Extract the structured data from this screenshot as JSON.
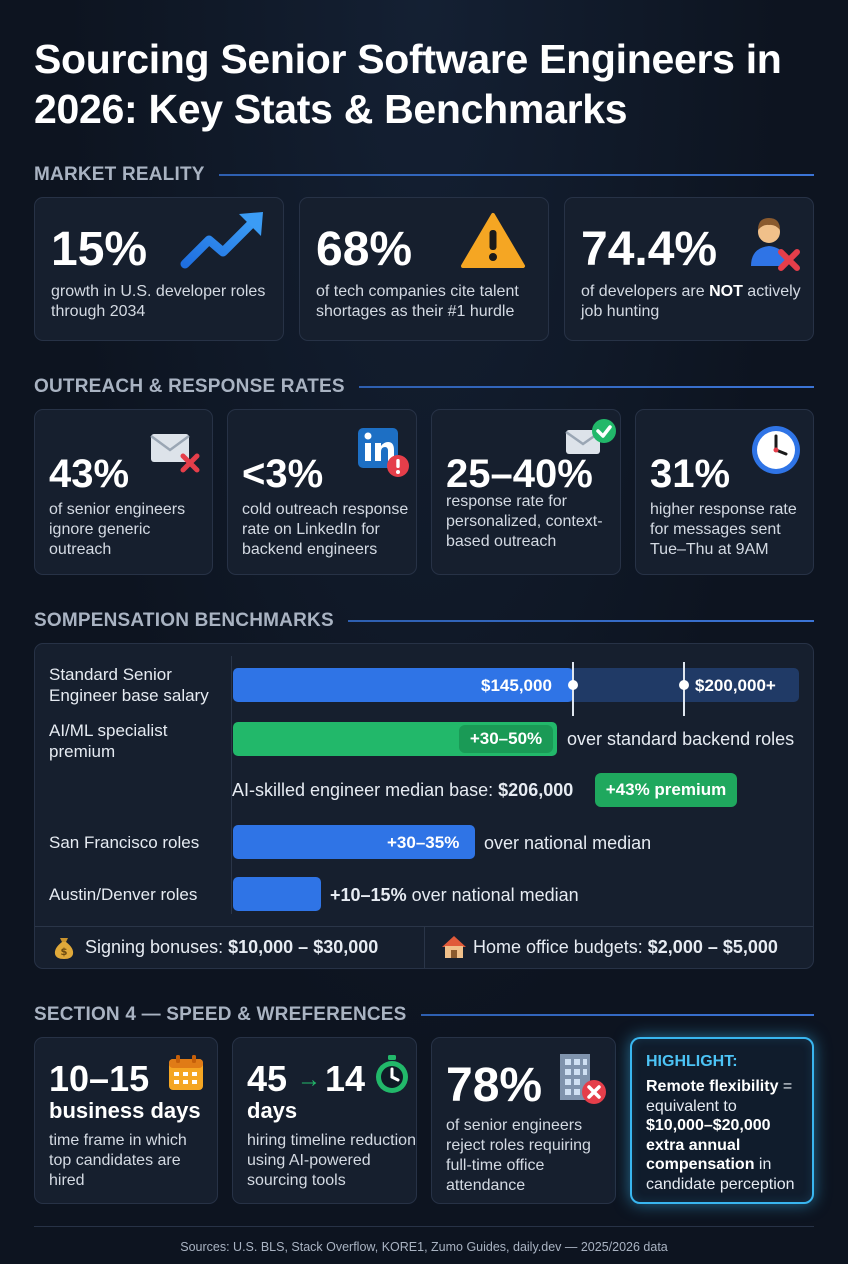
{
  "title": "Sourcing Senior Software Engineers in 2026: Key Stats & Benchmarks",
  "sections": {
    "market": "MARKET REALITY",
    "outreach": "OUTREACH & RESPONSE RATES",
    "comp": "SOMPENSATION BENCHMARKS",
    "speed": "SECTION 4 — SPEED & WREFERENCES"
  },
  "market_cards": [
    {
      "value": "15%",
      "text": "growth in U.S. developer roles through 2034",
      "icon": "trend-up-icon"
    },
    {
      "value": "68%",
      "text": "of tech companies cite talent shortages as their #1 hurdle",
      "icon": "warning-icon"
    },
    {
      "value": "74.4%",
      "text_a": "of developers are ",
      "text_b": "NOT",
      "text_c": " actively job hunting",
      "icon": "person-x-icon"
    }
  ],
  "outreach_cards": [
    {
      "value": "43%",
      "text": "of senior engineers ignore generic outreach",
      "icon": "mail-x-icon"
    },
    {
      "value": "<3%",
      "text": "cold outreach response rate on LinkedIn for backend engineers",
      "icon": "linkedin-alert-icon"
    },
    {
      "value": "25–40%",
      "text": "response rate for personalized, context-based outreach",
      "icon": "mail-check-icon"
    },
    {
      "value": "31%",
      "text": "higher response rate for messages sent Tue–Thu at 9AM",
      "icon": "clock-icon"
    }
  ],
  "comp": {
    "senior_label": "Standard Senior Engineer base salary",
    "senior_low": "$145,000",
    "senior_high": "$200,000+",
    "aiml_label": "AI/ML specialist premium",
    "aiml_pill": "+30–50%",
    "aiml_after": "over standard backend roles",
    "ai_median_text": "AI-skilled engineer median base: ",
    "ai_median_value": "$206,000",
    "ai_median_pill": "+43% premium",
    "sf_label": "San Francisco roles",
    "sf_bar": "+30–35%",
    "sf_after": "over national median",
    "austin_label": "Austin/Denver roles",
    "austin_value": "+10–15%",
    "austin_after": " over national median",
    "signing_text": "Signing bonuses: ",
    "signing_value": "$10,000 – $30,000",
    "home_text": "Home office budgets: ",
    "home_value": "$2,000 – $5,000",
    "colors": {
      "blue": "#2f74e6",
      "track": "#203a66",
      "green": "#22b86a"
    }
  },
  "speed_cards": [
    {
      "value": "10–15",
      "sub": "business days",
      "text": "time frame in which top candidates are hired",
      "icon": "calendar-icon"
    },
    {
      "value_a": "45",
      "value_b": "14",
      "sub": "days",
      "text": "hiring timeline reduction using AI-powered sourcing tools",
      "icon": "stopwatch-icon"
    },
    {
      "value": "78%",
      "text": "of senior engineers reject roles requiring full-time office attendance",
      "icon": "office-x-icon"
    }
  ],
  "highlight": {
    "label": "HIGHLIGHT:",
    "line1": "Remote flexibility",
    "line2": " = equivalent to ",
    "line3": "$10,000–$20,000 extra annual compensation",
    "line4": " in candidate perception"
  },
  "sources": "Sources: U.S. BLS, Stack Overflow, KORE1, Zumo Guides, daily.dev — 2025/2026 data"
}
